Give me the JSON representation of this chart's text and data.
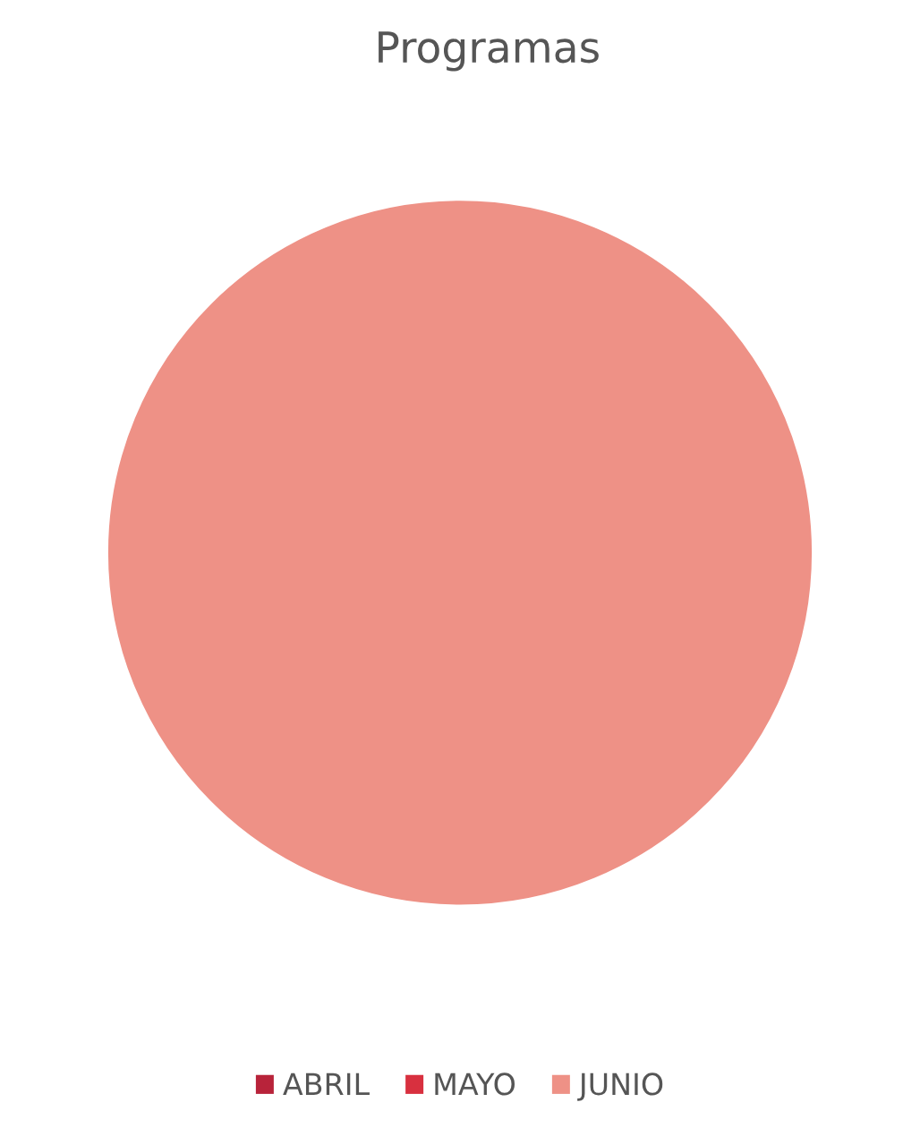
{
  "chart_data": {
    "type": "pie",
    "title": "Programas",
    "categories": [
      "ABRIL",
      "MAYO",
      "JUNIO"
    ],
    "values": [
      0,
      0,
      100
    ],
    "colors": [
      "#b8233a",
      "#d8303f",
      "#ee9186"
    ],
    "legend": "bottom"
  }
}
